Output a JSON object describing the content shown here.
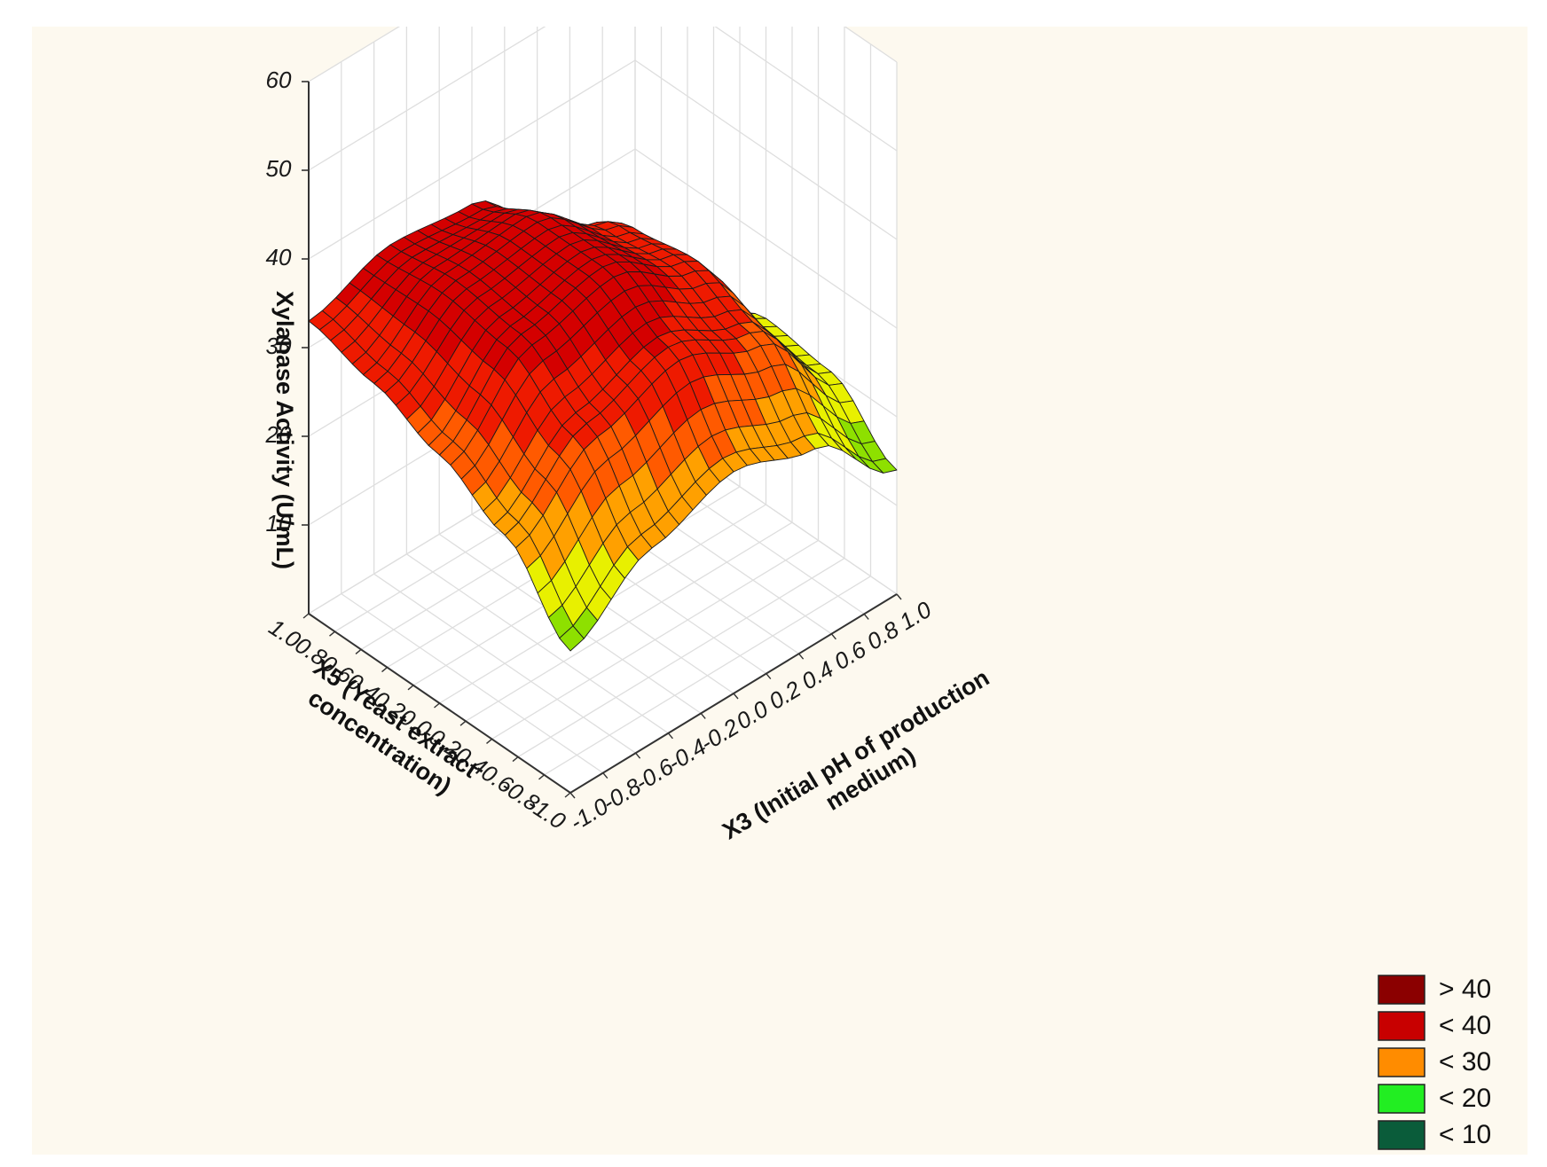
{
  "chart_data": {
    "type": "surface",
    "title": "",
    "xlabel_lines": [
      "X3 (Initial pH of production",
      "medium)"
    ],
    "ylabel_lines": [
      "X5 (Yeast extract",
      "concentration)"
    ],
    "zlabel": "Xylanase Activity (U/mL)",
    "x_range": [
      -1.0,
      1.0
    ],
    "y_range": [
      -1.0,
      1.0
    ],
    "z_range": [
      0,
      60
    ],
    "x_ticks": [
      "-1.0",
      "-0.8",
      "-0.6",
      "-0.4",
      "-0.2",
      "0.0",
      "0.2",
      "0.4",
      "0.6",
      "0.8",
      "1.0"
    ],
    "y_ticks": [
      "1.0",
      "0.8",
      "0.6",
      "0.4",
      "0.2",
      "0.0",
      "-0.2",
      "-0.4",
      "-0.6",
      "-0.8",
      "-1.0"
    ],
    "z_ticks": [
      "10",
      "20",
      "30",
      "40",
      "50",
      "60"
    ],
    "grid": true,
    "legend_position": "bottom-right",
    "legend": [
      {
        "label": "> 40",
        "color": "#8b0000"
      },
      {
        "label": "< 40",
        "color": "#c80000"
      },
      {
        "label": "< 30",
        "color": "#ff8c00"
      },
      {
        "label": "< 20",
        "color": "#22ee22"
      },
      {
        "label": "< 10",
        "color": "#0a5c3a"
      }
    ],
    "surface_samples": {
      "x": [
        -1.0,
        -0.5,
        0.0,
        0.5,
        1.0
      ],
      "y": [
        -1.0,
        -0.5,
        0.0,
        0.5,
        1.0
      ],
      "z_rows_by_y": [
        [
          16,
          22,
          25,
          22,
          14
        ],
        [
          24,
          31,
          34,
          30,
          20
        ],
        [
          28,
          36,
          38,
          33,
          21
        ],
        [
          31,
          37,
          38,
          32,
          17
        ],
        [
          33,
          36,
          35,
          27,
          10
        ]
      ]
    }
  }
}
